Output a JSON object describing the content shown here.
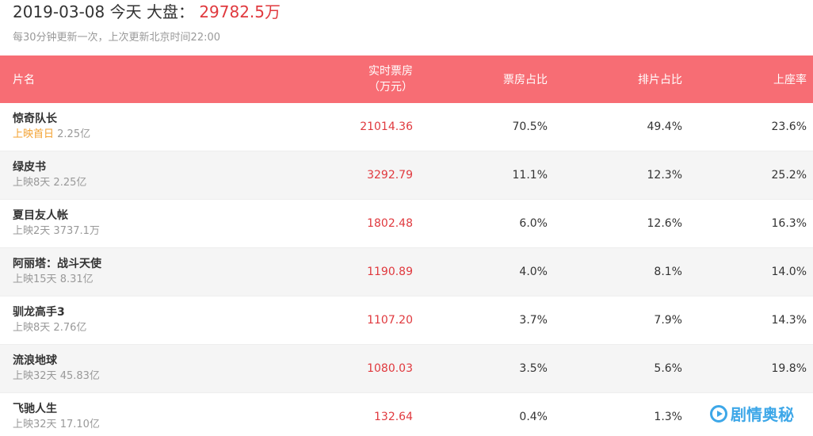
{
  "header": {
    "date": "2019-03-08",
    "today_label": "今天",
    "total_label": "大盘：",
    "total_value": "29782.5万",
    "update_note": "每30分钟更新一次，上次更新北京时间22:00"
  },
  "table": {
    "columns": {
      "name": "片名",
      "box_line1": "实时票房",
      "box_line2": "（万元）",
      "box_share": "票房占比",
      "schedule_share": "排片占比",
      "seat_rate": "上座率"
    },
    "rows": [
      {
        "title": "惊奇队长",
        "release": "上映首日",
        "release_first_day": true,
        "cumulative": "2.25亿",
        "box": "21014.36",
        "box_share": "70.5%",
        "schedule_share": "49.4%",
        "seat_rate": "23.6%"
      },
      {
        "title": "绿皮书",
        "release": "上映8天",
        "release_first_day": false,
        "cumulative": "2.25亿",
        "box": "3292.79",
        "box_share": "11.1%",
        "schedule_share": "12.3%",
        "seat_rate": "25.2%"
      },
      {
        "title": "夏目友人帐",
        "release": "上映2天",
        "release_first_day": false,
        "cumulative": "3737.1万",
        "box": "1802.48",
        "box_share": "6.0%",
        "schedule_share": "12.6%",
        "seat_rate": "16.3%"
      },
      {
        "title": "阿丽塔：战斗天使",
        "release": "上映15天",
        "release_first_day": false,
        "cumulative": "8.31亿",
        "box": "1190.89",
        "box_share": "4.0%",
        "schedule_share": "8.1%",
        "seat_rate": "14.0%"
      },
      {
        "title": "驯龙高手3",
        "release": "上映8天",
        "release_first_day": false,
        "cumulative": "2.76亿",
        "box": "1107.20",
        "box_share": "3.7%",
        "schedule_share": "7.9%",
        "seat_rate": "14.3%"
      },
      {
        "title": "流浪地球",
        "release": "上映32天",
        "release_first_day": false,
        "cumulative": "45.83亿",
        "box": "1080.03",
        "box_share": "3.5%",
        "schedule_share": "5.6%",
        "seat_rate": "19.8%"
      },
      {
        "title": "飞驰人生",
        "release": "上映32天",
        "release_first_day": false,
        "cumulative": "17.10亿",
        "box": "132.64",
        "box_share": "0.4%",
        "schedule_share": "1.3%",
        "seat_rate": ""
      }
    ]
  },
  "watermark": {
    "text": "剧情奥秘",
    "icon": "play-circle-icon",
    "color": "#3da7e8"
  },
  "colors": {
    "header_bg": "#f76d74",
    "box_value": "#e0393e",
    "first_day": "#f3a232",
    "alt_row": "#f5f5f5"
  }
}
